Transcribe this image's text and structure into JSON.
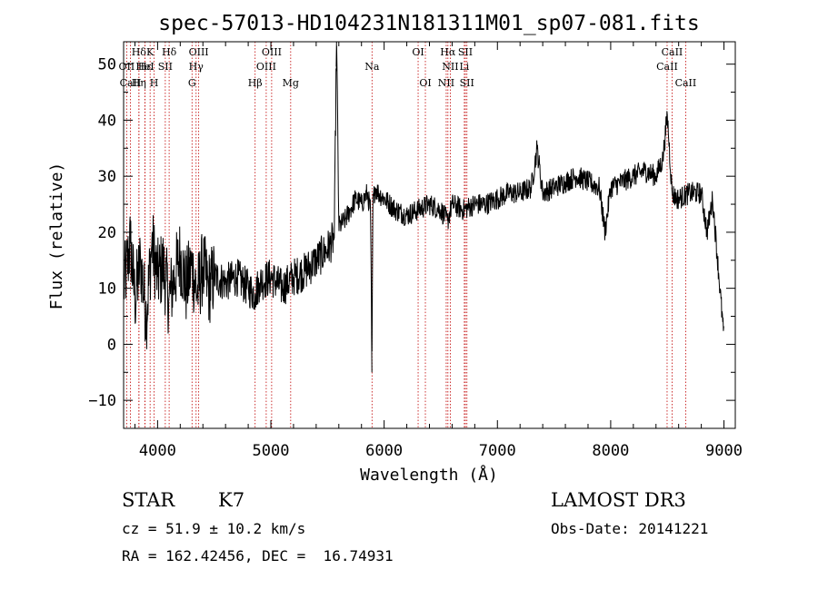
{
  "chart_data": {
    "type": "line",
    "title": "spec-57013-HD104231N181311M01_sp07-081.fits",
    "xlabel": "Wavelength (Å)",
    "ylabel": "Flux (relative)",
    "xlim": [
      3700,
      9100
    ],
    "ylim": [
      -15,
      54
    ],
    "xticks": [
      4000,
      5000,
      6000,
      7000,
      8000,
      9000
    ],
    "yticks": [
      -10,
      0,
      10,
      20,
      30,
      40,
      50
    ],
    "grid": false,
    "series": [
      {
        "name": "flux",
        "x": [
          3700,
          3760,
          3800,
          3850,
          3900,
          3950,
          4000,
          4050,
          4100,
          4150,
          4200,
          4250,
          4300,
          4350,
          4400,
          4450,
          4500,
          4600,
          4700,
          4800,
          4860,
          4900,
          5000,
          5100,
          5200,
          5300,
          5400,
          5500,
          5560,
          5580,
          5600,
          5650,
          5700,
          5750,
          5800,
          5850,
          5880,
          5892,
          5900,
          5920,
          5950,
          6000,
          6100,
          6200,
          6300,
          6400,
          6500,
          6560,
          6600,
          6700,
          6800,
          6900,
          7000,
          7100,
          7200,
          7300,
          7350,
          7400,
          7500,
          7600,
          7700,
          7800,
          7900,
          7950,
          8000,
          8100,
          8200,
          8300,
          8400,
          8460,
          8500,
          8542,
          8580,
          8600,
          8700,
          8800,
          8850,
          8900,
          9000
        ],
        "y": [
          10,
          18,
          8,
          15,
          5,
          18,
          12,
          14,
          8,
          12,
          16,
          10,
          14,
          9,
          14,
          10,
          12,
          11,
          12,
          10,
          9,
          11,
          12,
          10,
          12,
          13,
          15,
          17,
          19,
          55,
          21,
          22,
          24,
          26,
          25,
          27,
          24,
          -5,
          25,
          28,
          27,
          26,
          24,
          23,
          24,
          25,
          24,
          22,
          25,
          24,
          25,
          25,
          26,
          27,
          27,
          28,
          35,
          27,
          28,
          29,
          30,
          29,
          28,
          20,
          28,
          29,
          30,
          31,
          30,
          33,
          41,
          27,
          26,
          26,
          27,
          27,
          20,
          26,
          1
        ]
      }
    ],
    "lines": [
      {
        "name": "Hδ",
        "wl": 3835,
        "row": 0
      },
      {
        "name": "OII",
        "wl": 3727,
        "row": 1
      },
      {
        "name": "CaII",
        "wl": 3760,
        "row": 2
      },
      {
        "name": "Hε",
        "wl": 3889,
        "row": 1
      },
      {
        "name": "Hη",
        "wl": 3835,
        "row": 2
      },
      {
        "name": "K",
        "wl": 3934,
        "row": 0
      },
      {
        "name": "HeI",
        "wl": 3889,
        "row": 1
      },
      {
        "name": "H",
        "wl": 3969,
        "row": 2
      },
      {
        "name": "SII",
        "wl": 4068,
        "row": 1
      },
      {
        "name": "Hδ",
        "wl": 4102,
        "row": 0
      },
      {
        "name": "OIII",
        "wl": 4363,
        "row": 0
      },
      {
        "name": "Hγ",
        "wl": 4340,
        "row": 1
      },
      {
        "name": "G",
        "wl": 4304,
        "row": 2
      },
      {
        "name": "OIII",
        "wl": 5007,
        "row": 0
      },
      {
        "name": "OIII",
        "wl": 4959,
        "row": 1
      },
      {
        "name": "Hβ",
        "wl": 4861,
        "row": 2
      },
      {
        "name": "Mg",
        "wl": 5175,
        "row": 2
      },
      {
        "name": "Na",
        "wl": 5893,
        "row": 1
      },
      {
        "name": "OI",
        "wl": 6300,
        "row": 0
      },
      {
        "name": "OI",
        "wl": 6364,
        "row": 2
      },
      {
        "name": "Hα",
        "wl": 6563,
        "row": 0
      },
      {
        "name": "SII",
        "wl": 6717,
        "row": 0
      },
      {
        "name": "NII",
        "wl": 6584,
        "row": 1
      },
      {
        "name": "Li",
        "wl": 6708,
        "row": 1
      },
      {
        "name": "NII",
        "wl": 6548,
        "row": 2
      },
      {
        "name": "SII",
        "wl": 6731,
        "row": 2
      },
      {
        "name": "CaII",
        "wl": 8542,
        "row": 0
      },
      {
        "name": "CaII",
        "wl": 8498,
        "row": 1
      },
      {
        "name": "CaII",
        "wl": 8662,
        "row": 2
      }
    ]
  },
  "info": {
    "class": "STAR",
    "subclass": "K7",
    "survey": "LAMOST DR3",
    "velocity": "cz = 51.9 ± 10.2 km/s",
    "obs_date": "Obs-Date: 20141221",
    "coords": "RA = 162.42456, DEC =  16.74931"
  },
  "colors": {
    "spectrum": "#000000",
    "line_markers": "#c00000",
    "axes": "#000000"
  }
}
